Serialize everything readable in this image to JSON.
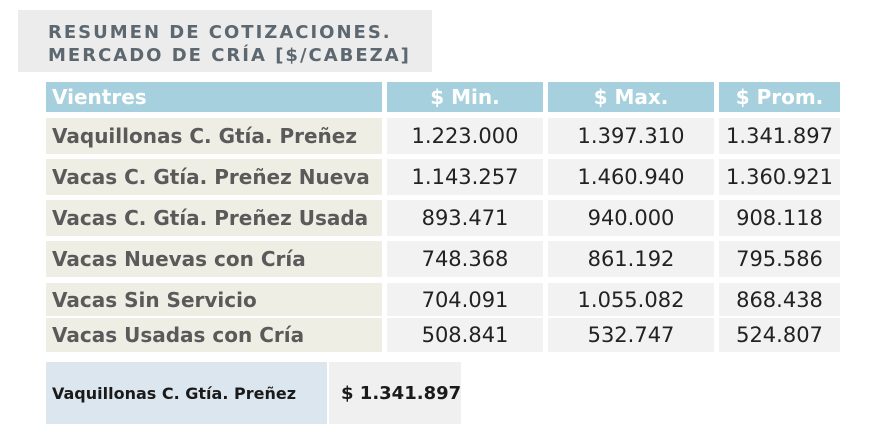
{
  "title": {
    "line1": "RESUMEN DE COTIZACIONES.",
    "line2": "MERCADO DE CRÍA [$/CABEZA]"
  },
  "table": {
    "headers": [
      "Vientres",
      "$ Min.",
      "$ Max.",
      "$ Prom."
    ],
    "rows": [
      {
        "label": "Vaquillonas C. Gtía. Preñez",
        "min": "1.223.000",
        "max": "1.397.310",
        "prom": "1.341.897"
      },
      {
        "label": "Vacas C. Gtía. Preñez Nueva",
        "min": "1.143.257",
        "max": "1.460.940",
        "prom": "1.360.921"
      },
      {
        "label": "Vacas C. Gtía. Preñez Usada",
        "min": "893.471",
        "max": "940.000",
        "prom": "908.118"
      },
      {
        "label": "Vacas Nuevas con Cría",
        "min": "748.368",
        "max": "861.192",
        "prom": "795.586"
      },
      {
        "label": "Vacas Sin Servicio",
        "min": "704.091",
        "max": "1.055.082",
        "prom": "868.438"
      },
      {
        "label": "Vacas Usadas con Cría",
        "min": "508.841",
        "max": "532.747",
        "prom": "524.807"
      }
    ]
  },
  "summary": {
    "label": "Vaquillonas C. Gtía. Preñez",
    "value": "$  1.341.897"
  },
  "colors": {
    "header_bg": "#a6d0de",
    "label_bg": "#eeeee4",
    "value_bg": "#f2f2f2",
    "summary_label_bg": "#dce6ef"
  }
}
